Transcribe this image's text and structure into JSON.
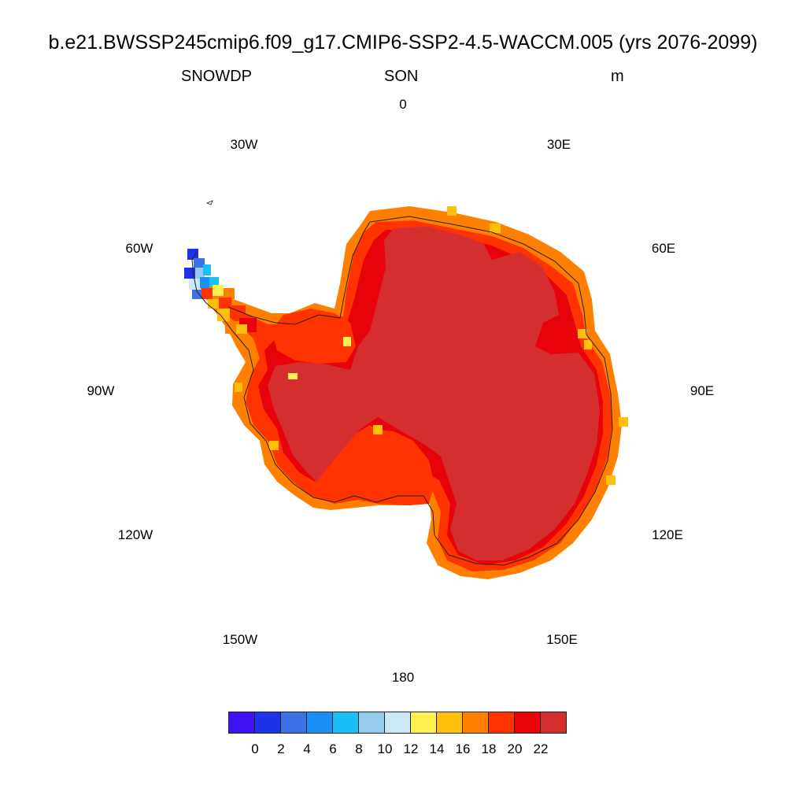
{
  "header": {
    "title": "b.e21.BWSSP245cmip6.f09_g17.CMIP6-SSP2-4.5-WACCM.005 (yrs 2076-2099)",
    "variable": "SNOWDP",
    "season": "SON",
    "units": "m"
  },
  "map": {
    "projection": "south polar stereographic",
    "longitude_labels": {
      "lon_0": "0",
      "lon_30e": "30E",
      "lon_60e": "60E",
      "lon_90e": "90E",
      "lon_120e": "120E",
      "lon_150e": "150E",
      "lon_180": "180",
      "lon_150w": "150W",
      "lon_120w": "120W",
      "lon_90w": "90W",
      "lon_60w": "60W",
      "lon_30w": "30W"
    },
    "colors": {
      "interior": "#d42e2e",
      "band_inner": "#e8020a",
      "band_mid": "#ff3300",
      "band_outer": "#ff8000",
      "coast_yellow": "#ffbf0a",
      "coastline": "#222222"
    }
  },
  "colorbar": {
    "colors": [
      "#3e12f5",
      "#1e33e8",
      "#3c72e6",
      "#1a8ff5",
      "#18c0f7",
      "#94cbee",
      "#cce8f7",
      "#ffef50",
      "#ffbf0a",
      "#ff8000",
      "#ff3300",
      "#e8020a",
      "#d42e2e"
    ],
    "ticks": [
      "0",
      "2",
      "4",
      "6",
      "8",
      "10",
      "12",
      "14",
      "16",
      "18",
      "20",
      "22"
    ]
  }
}
